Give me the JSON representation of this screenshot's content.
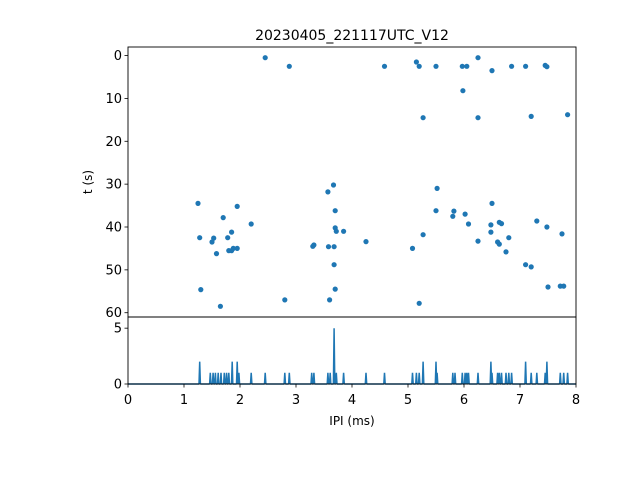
{
  "chart_data": [
    {
      "type": "scatter",
      "title": "20230405_221117UTC_V12",
      "xlabel": "",
      "ylabel": "t (s)",
      "xlim": [
        0,
        8
      ],
      "ylim": [
        61,
        -2
      ],
      "y_inverted": true,
      "yticks": [
        0,
        10,
        20,
        30,
        40,
        50,
        60
      ],
      "color": "#1f77b4",
      "points": [
        [
          2.45,
          0.5
        ],
        [
          2.88,
          2.5
        ],
        [
          4.58,
          2.5
        ],
        [
          5.15,
          1.5
        ],
        [
          5.2,
          2.5
        ],
        [
          5.5,
          2.5
        ],
        [
          5.97,
          2.5
        ],
        [
          6.05,
          2.5
        ],
        [
          6.25,
          0.5
        ],
        [
          6.5,
          3.5
        ],
        [
          6.85,
          2.5
        ],
        [
          7.1,
          2.5
        ],
        [
          7.45,
          2.3
        ],
        [
          7.48,
          2.6
        ],
        [
          5.98,
          8.2
        ],
        [
          5.27,
          14.5
        ],
        [
          6.25,
          14.5
        ],
        [
          7.2,
          14.2
        ],
        [
          7.85,
          13.8
        ],
        [
          3.67,
          30.2
        ],
        [
          3.57,
          31.8
        ],
        [
          5.52,
          31.0
        ],
        [
          1.25,
          34.5
        ],
        [
          1.95,
          35.2
        ],
        [
          6.5,
          34.5
        ],
        [
          3.7,
          36.2
        ],
        [
          5.5,
          36.2
        ],
        [
          5.82,
          36.3
        ],
        [
          5.8,
          37.5
        ],
        [
          6.02,
          37.0
        ],
        [
          1.7,
          37.8
        ],
        [
          2.2,
          39.3
        ],
        [
          6.08,
          39.3
        ],
        [
          6.48,
          39.5
        ],
        [
          6.63,
          38.9
        ],
        [
          6.67,
          39.2
        ],
        [
          7.3,
          38.6
        ],
        [
          7.48,
          40.0
        ],
        [
          3.7,
          40.2
        ],
        [
          3.72,
          41.0
        ],
        [
          3.85,
          41.0
        ],
        [
          6.48,
          41.2
        ],
        [
          1.85,
          41.2
        ],
        [
          1.53,
          42.6
        ],
        [
          1.28,
          42.5
        ],
        [
          1.78,
          42.5
        ],
        [
          5.27,
          41.8
        ],
        [
          7.75,
          41.6
        ],
        [
          6.8,
          42.5
        ],
        [
          1.5,
          43.5
        ],
        [
          3.32,
          44.2
        ],
        [
          3.3,
          44.5
        ],
        [
          4.25,
          43.4
        ],
        [
          6.25,
          43.3
        ],
        [
          6.6,
          43.5
        ],
        [
          6.63,
          44.0
        ],
        [
          3.58,
          44.6
        ],
        [
          3.68,
          44.6
        ],
        [
          1.88,
          45.0
        ],
        [
          1.95,
          45.0
        ],
        [
          5.08,
          45.0
        ],
        [
          1.8,
          45.5
        ],
        [
          1.85,
          45.5
        ],
        [
          1.58,
          46.2
        ],
        [
          6.75,
          45.8
        ],
        [
          3.68,
          48.8
        ],
        [
          7.1,
          48.8
        ],
        [
          7.2,
          49.3
        ],
        [
          1.3,
          54.6
        ],
        [
          3.7,
          54.5
        ],
        [
          7.5,
          54.0
        ],
        [
          7.72,
          53.8
        ],
        [
          7.78,
          53.8
        ],
        [
          2.8,
          57.0
        ],
        [
          3.6,
          57.0
        ],
        [
          5.2,
          57.8
        ],
        [
          1.65,
          58.5
        ]
      ]
    },
    {
      "type": "line",
      "xlabel": "IPI (ms)",
      "ylabel": "",
      "xlim": [
        0,
        8
      ],
      "ylim": [
        0,
        6
      ],
      "xticks": [
        0,
        1,
        2,
        3,
        4,
        5,
        6,
        7,
        8
      ],
      "yticks": [
        0,
        5
      ],
      "color": "#1f77b4",
      "baseline_segments": [
        [
          0,
          1.25
        ],
        [
          7.9,
          8
        ]
      ],
      "spikes": [
        [
          1.28,
          2
        ],
        [
          1.47,
          1
        ],
        [
          1.52,
          1
        ],
        [
          1.56,
          1
        ],
        [
          1.61,
          1
        ],
        [
          1.66,
          1
        ],
        [
          1.72,
          1
        ],
        [
          1.76,
          1
        ],
        [
          1.8,
          1
        ],
        [
          1.86,
          2
        ],
        [
          1.95,
          2
        ],
        [
          1.98,
          1
        ],
        [
          2.2,
          1
        ],
        [
          2.45,
          1
        ],
        [
          2.8,
          1
        ],
        [
          2.88,
          1
        ],
        [
          3.28,
          1
        ],
        [
          3.32,
          1
        ],
        [
          3.57,
          1
        ],
        [
          3.61,
          1
        ],
        [
          3.68,
          5
        ],
        [
          3.72,
          1
        ],
        [
          3.85,
          1
        ],
        [
          4.25,
          1
        ],
        [
          4.58,
          1
        ],
        [
          5.08,
          1
        ],
        [
          5.15,
          1
        ],
        [
          5.2,
          1
        ],
        [
          5.27,
          2
        ],
        [
          5.5,
          2
        ],
        [
          5.52,
          1
        ],
        [
          5.8,
          1
        ],
        [
          5.84,
          1
        ],
        [
          5.97,
          1
        ],
        [
          6.02,
          1
        ],
        [
          6.05,
          1
        ],
        [
          6.08,
          1
        ],
        [
          6.25,
          1
        ],
        [
          6.48,
          2
        ],
        [
          6.5,
          1
        ],
        [
          6.6,
          1
        ],
        [
          6.63,
          1
        ],
        [
          6.67,
          1
        ],
        [
          6.75,
          1
        ],
        [
          6.8,
          1
        ],
        [
          6.85,
          1
        ],
        [
          7.1,
          2
        ],
        [
          7.2,
          1
        ],
        [
          7.3,
          1
        ],
        [
          7.45,
          1
        ],
        [
          7.48,
          2
        ],
        [
          7.72,
          1
        ],
        [
          7.78,
          1
        ],
        [
          7.85,
          1
        ]
      ]
    }
  ]
}
